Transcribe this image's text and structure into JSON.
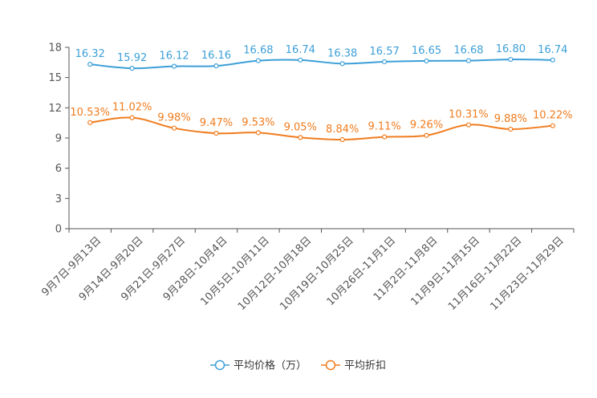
{
  "chart_data": {
    "type": "line",
    "categories": [
      "9月7日-9月13日",
      "9月14日-9月20日",
      "9月21日-9月27日",
      "9月28日-10月4日",
      "10月5日-10月11日",
      "10月12日-10月18日",
      "10月19日-10月25日",
      "10月26日-11月1日",
      "11月2日-11月8日",
      "11月9日-11月15日",
      "11月16日-11月22日",
      "11月23日-11月29日"
    ],
    "ylim": [
      0,
      18
    ],
    "yticks": [
      0,
      3,
      6,
      9,
      12,
      15,
      18
    ],
    "series": [
      {
        "name": "平均价格（万）",
        "color": "#3c9fd8",
        "values": [
          16.32,
          15.92,
          16.12,
          16.16,
          16.68,
          16.74,
          16.38,
          16.57,
          16.65,
          16.68,
          16.8,
          16.74
        ],
        "labels": [
          "16.32",
          "15.92",
          "16.12",
          "16.16",
          "16.68",
          "16.74",
          "16.38",
          "16.57",
          "16.65",
          "16.68",
          "16.80",
          "16.74"
        ]
      },
      {
        "name": "平均折扣",
        "color": "#f07c1e",
        "values": [
          10.53,
          11.02,
          9.98,
          9.47,
          9.53,
          9.05,
          8.84,
          9.11,
          9.26,
          10.31,
          9.88,
          10.22
        ],
        "labels": [
          "10.53%",
          "11.02%",
          "9.98%",
          "9.47%",
          "9.53%",
          "9.05%",
          "8.84%",
          "9.11%",
          "9.26%",
          "10.31%",
          "9.88%",
          "10.22%"
        ]
      }
    ],
    "legend": {
      "position": "bottom-center"
    },
    "grid": false
  }
}
